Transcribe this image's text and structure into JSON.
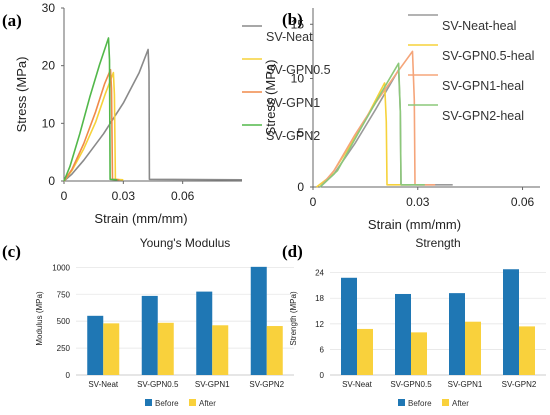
{
  "panels": [
    {
      "label": "(a)",
      "type": "line",
      "xlabel": "Strain (mm/mm)",
      "ylabel": "Stress (MPa)",
      "xlim": [
        0,
        0.09
      ],
      "ylim": [
        0,
        30
      ],
      "xticks": [
        {
          "v": 0,
          "t": "0"
        },
        {
          "v": 0.03,
          "t": "0.03"
        },
        {
          "v": 0.06,
          "t": "0.06"
        }
      ],
      "yticks": [
        {
          "v": 0,
          "t": "0"
        },
        {
          "v": 10,
          "t": "10"
        },
        {
          "v": 20,
          "t": "20"
        },
        {
          "v": 30,
          "t": "30"
        }
      ],
      "series": [
        {
          "name": "SV-Neat",
          "color": "#8a8a8a",
          "points": [
            [
              0,
              0
            ],
            [
              0.004,
              1.2
            ],
            [
              0.01,
              3.6
            ],
            [
              0.02,
              8.2
            ],
            [
              0.03,
              13.5
            ],
            [
              0.038,
              18.8
            ],
            [
              0.0425,
              22.8
            ],
            [
              0.043,
              19
            ],
            [
              0.0432,
              0.3
            ],
            [
              0.09,
              0.2
            ]
          ]
        },
        {
          "name": "SV-GPN0.5",
          "color": "#f6d23a",
          "points": [
            [
              0,
              0
            ],
            [
              0.004,
              1.8
            ],
            [
              0.01,
              5.6
            ],
            [
              0.016,
              10.2
            ],
            [
              0.021,
              15.2
            ],
            [
              0.025,
              18.8
            ],
            [
              0.0255,
              15
            ],
            [
              0.026,
              0.3
            ],
            [
              0.03,
              0.2
            ]
          ]
        },
        {
          "name": "SV-GPN1",
          "color": "#f08a4a",
          "points": [
            [
              0,
              0
            ],
            [
              0.004,
              2
            ],
            [
              0.01,
              6.5
            ],
            [
              0.016,
              12
            ],
            [
              0.0205,
              16.8
            ],
            [
              0.0235,
              19.3
            ],
            [
              0.024,
              16
            ],
            [
              0.0245,
              0.3
            ],
            [
              0.028,
              0.2
            ]
          ]
        },
        {
          "name": "SV-GPN2",
          "color": "#52b84a",
          "points": [
            [
              0,
              0
            ],
            [
              0.003,
              2.5
            ],
            [
              0.008,
              8.2
            ],
            [
              0.013,
              14.5
            ],
            [
              0.018,
              20.2
            ],
            [
              0.0225,
              24.8
            ],
            [
              0.023,
              21
            ],
            [
              0.0233,
              0.3
            ],
            [
              0.027,
              0.2
            ]
          ]
        }
      ]
    },
    {
      "label": "(b)",
      "type": "line",
      "xlabel": "Strain (mm/mm)",
      "ylabel": "Stress (MPa)",
      "xlim": [
        0,
        0.065
      ],
      "ylim": [
        0,
        16.5
      ],
      "xticks": [
        {
          "v": 0,
          "t": "0"
        },
        {
          "v": 0.03,
          "t": "0.03"
        },
        {
          "v": 0.06,
          "t": "0.06"
        }
      ],
      "yticks": [
        {
          "v": 0,
          "t": "0"
        },
        {
          "v": 5,
          "t": "5"
        },
        {
          "v": 10,
          "t": "10"
        },
        {
          "v": 15,
          "t": "15"
        }
      ],
      "series": [
        {
          "name": "SV-Neat-heal",
          "color": "#9a9a9a",
          "points": [
            [
              0.002,
              0
            ],
            [
              0.006,
              1.2
            ],
            [
              0.012,
              4
            ],
            [
              0.018,
              7.2
            ],
            [
              0.0245,
              10.8
            ],
            [
              0.025,
              7
            ],
            [
              0.0252,
              0.2
            ],
            [
              0.04,
              0.2
            ]
          ]
        },
        {
          "name": "SV-GPN0.5-heal",
          "color": "#f6d23a",
          "points": [
            [
              0.001,
              0
            ],
            [
              0.005,
              1
            ],
            [
              0.01,
              3.5
            ],
            [
              0.015,
              6.2
            ],
            [
              0.0205,
              9.6
            ],
            [
              0.021,
              6
            ],
            [
              0.0212,
              0.2
            ],
            [
              0.028,
              0.2
            ]
          ]
        },
        {
          "name": "SV-GPN1-heal",
          "color": "#f5a57a",
          "points": [
            [
              0.002,
              0
            ],
            [
              0.006,
              1.5
            ],
            [
              0.012,
              4.8
            ],
            [
              0.018,
              7.8
            ],
            [
              0.0235,
              10.3
            ],
            [
              0.0285,
              12.5
            ],
            [
              0.029,
              8
            ],
            [
              0.0292,
              0.2
            ],
            [
              0.035,
              0.2
            ]
          ]
        },
        {
          "name": "SV-GPN2-heal",
          "color": "#8cc87a",
          "points": [
            [
              0.002,
              0
            ],
            [
              0.007,
              1.5
            ],
            [
              0.013,
              5
            ],
            [
              0.019,
              8.4
            ],
            [
              0.0245,
              11.4
            ],
            [
              0.025,
              7
            ],
            [
              0.0252,
              0.2
            ],
            [
              0.032,
              0.2
            ]
          ]
        }
      ]
    },
    {
      "label": "(c)",
      "type": "bar",
      "title": "Young's Modulus",
      "ylabel": "Modulus (MPa)",
      "ylim": [
        0,
        1050
      ],
      "yticks": [
        {
          "v": 0,
          "t": "0"
        },
        {
          "v": 250,
          "t": "250"
        },
        {
          "v": 500,
          "t": "500"
        },
        {
          "v": 750,
          "t": "750"
        },
        {
          "v": 1000,
          "t": "1000"
        }
      ],
      "categories": [
        "SV-Neat",
        "SV-GPN0.5",
        "SV-GPN1",
        "SV-GPN2"
      ],
      "series": [
        {
          "name": "Before",
          "color": "#1f77b4",
          "values": [
            550,
            735,
            775,
            1005
          ]
        },
        {
          "name": "After",
          "color": "#f9d13c",
          "values": [
            480,
            485,
            462,
            455
          ]
        }
      ],
      "legend": "bottom"
    },
    {
      "label": "(d)",
      "type": "bar",
      "title": "Strength",
      "ylabel": "Strength (MPa)",
      "ylim": [
        0,
        26.5
      ],
      "yticks": [
        {
          "v": 0,
          "t": "0"
        },
        {
          "v": 6,
          "t": "6"
        },
        {
          "v": 12,
          "t": "12"
        },
        {
          "v": 18,
          "t": "18"
        },
        {
          "v": 24,
          "t": "24"
        }
      ],
      "categories": [
        "SV-Neat",
        "SV-GPN0.5",
        "SV-GPN1",
        "SV-GPN2"
      ],
      "series": [
        {
          "name": "Before",
          "color": "#1f77b4",
          "values": [
            22.8,
            19,
            19.2,
            24.8
          ]
        },
        {
          "name": "After",
          "color": "#f9d13c",
          "values": [
            10.8,
            10,
            12.5,
            11.4
          ]
        }
      ],
      "legend": "bottom"
    }
  ]
}
